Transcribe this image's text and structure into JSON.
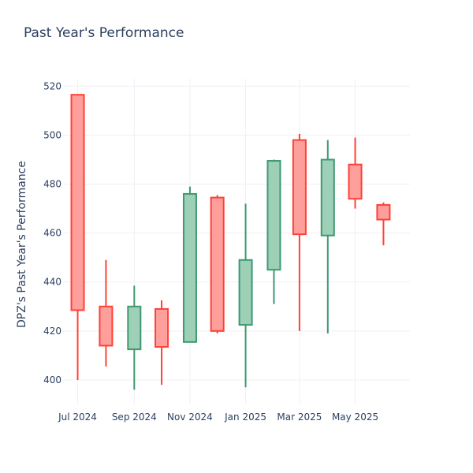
{
  "title": "Past Year's Performance",
  "chart_data": {
    "type": "candlestick",
    "title": "Past Year's Performance",
    "xlabel": "",
    "ylabel": "DPZ's Past Year's Performance",
    "ylim": [
      390,
      523
    ],
    "xlim": [
      "2024-06-15",
      "2025-06-30"
    ],
    "grid": true,
    "legend": "none",
    "x_ticks": [
      {
        "date": "2024-07-01",
        "label": "Jul 2024"
      },
      {
        "date": "2024-09-01",
        "label": "Sep 2024"
      },
      {
        "date": "2024-11-01",
        "label": "Nov 2024"
      },
      {
        "date": "2025-01-01",
        "label": "Jan 2025"
      },
      {
        "date": "2025-03-01",
        "label": "Mar 2025"
      },
      {
        "date": "2025-05-01",
        "label": "May 2025"
      }
    ],
    "y_ticks": [
      400,
      420,
      440,
      460,
      480,
      500,
      520
    ],
    "colors": {
      "increasing": "#3d9970",
      "decreasing": "#ff4136",
      "increasing_fill": "#9ecfb7",
      "decreasing_fill": "#ff9f9b"
    },
    "series": [
      {
        "date": "2024-07-01",
        "open": 516.5,
        "high": 516.5,
        "low": 400.0,
        "close": 428.5
      },
      {
        "date": "2024-08-01",
        "open": 430.0,
        "high": 449.0,
        "low": 405.5,
        "close": 414.0
      },
      {
        "date": "2024-09-01",
        "open": 412.5,
        "high": 438.5,
        "low": 396.0,
        "close": 430.0
      },
      {
        "date": "2024-10-01",
        "open": 429.0,
        "high": 432.5,
        "low": 398.0,
        "close": 413.5
      },
      {
        "date": "2024-11-01",
        "open": 415.5,
        "high": 479.0,
        "low": 415.5,
        "close": 476.0
      },
      {
        "date": "2024-12-01",
        "open": 474.5,
        "high": 475.5,
        "low": 419.0,
        "close": 420.0
      },
      {
        "date": "2025-01-01",
        "open": 422.5,
        "high": 472.0,
        "low": 397.0,
        "close": 449.0
      },
      {
        "date": "2025-02-01",
        "open": 445.0,
        "high": 490.0,
        "low": 431.0,
        "close": 489.5
      },
      {
        "date": "2025-03-01",
        "open": 498.0,
        "high": 500.5,
        "low": 420.0,
        "close": 459.5
      },
      {
        "date": "2025-04-01",
        "open": 459.0,
        "high": 498.0,
        "low": 419.0,
        "close": 490.0
      },
      {
        "date": "2025-05-01",
        "open": 488.0,
        "high": 499.0,
        "low": 470.0,
        "close": 474.0
      },
      {
        "date": "2025-06-01",
        "open": 471.5,
        "high": 472.5,
        "low": 455.0,
        "close": 465.5
      }
    ]
  }
}
